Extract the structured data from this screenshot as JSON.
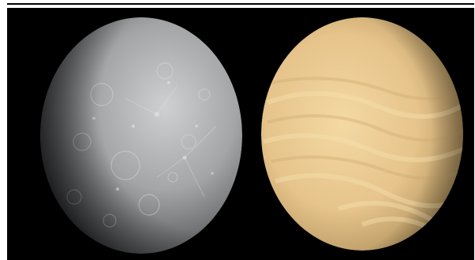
{
  "image": {
    "panels": [
      {
        "name": "grey-cratered-planet",
        "colors": {
          "light": "#c9cacb",
          "mid": "#8f9092",
          "dark": "#2b2b2d",
          "crater": "#d8dbe4"
        }
      },
      {
        "name": "yellow-cloudy-planet",
        "colors": {
          "light": "#f6dca8",
          "mid": "#d9b77c",
          "dark": "#3d3624",
          "band": "#f3cf94"
        }
      }
    ],
    "background": "#000000",
    "border": "#ffffff"
  }
}
